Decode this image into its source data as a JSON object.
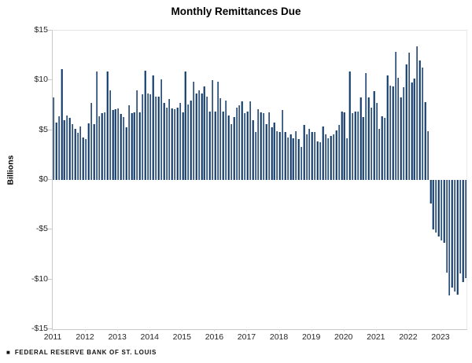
{
  "title": "Monthly Remittances Due",
  "y_axis": {
    "label": "Billions",
    "ticks": [
      "$15",
      "$10",
      "$5",
      "$0",
      "-$5",
      "-$10",
      "-$15"
    ],
    "tick_values": [
      15,
      10,
      5,
      0,
      -5,
      -10,
      -15
    ]
  },
  "x_axis": {
    "year_labels": [
      "2011",
      "2012",
      "2013",
      "2014",
      "2015",
      "2016",
      "2017",
      "2018",
      "2019",
      "2020",
      "2021",
      "2022",
      "2023"
    ]
  },
  "footer": {
    "marker": "■",
    "text": "FEDERAL RESERVE BANK OF ST. LOUIS"
  },
  "colors": {
    "bar_dark": "#152f52",
    "bar_edge_light": "#a9c0d8",
    "bar_edge_mid": "#46709f",
    "axis_line": "#c9c9c9",
    "text": "#262626",
    "background": "#ffffff"
  },
  "chart_data": {
    "type": "bar",
    "title": "Monthly Remittances Due",
    "xlabel": "",
    "ylabel": "Billions",
    "ylim": [
      -15,
      15
    ],
    "grid": false,
    "legend_position": "none",
    "frequency": "monthly",
    "start": "2011-01",
    "end": "2023-10",
    "x_year_ticks": [
      2011,
      2012,
      2013,
      2014,
      2015,
      2016,
      2017,
      2018,
      2019,
      2020,
      2021,
      2022,
      2023
    ],
    "values": [
      8.3,
      5.8,
      6.4,
      11.1,
      6.0,
      6.5,
      6.2,
      5.6,
      5.1,
      4.7,
      5.4,
      4.3,
      4.1,
      5.7,
      7.7,
      5.6,
      10.9,
      6.4,
      6.7,
      6.8,
      10.9,
      9.0,
      7.0,
      7.1,
      7.2,
      6.6,
      6.3,
      5.3,
      7.5,
      6.7,
      6.8,
      9.0,
      6.8,
      8.6,
      11.0,
      8.7,
      8.6,
      10.5,
      8.4,
      8.4,
      10.1,
      7.7,
      7.3,
      8.1,
      7.2,
      7.1,
      7.3,
      7.7,
      6.8,
      10.9,
      7.6,
      8.0,
      9.9,
      8.7,
      9.0,
      8.7,
      9.4,
      8.4,
      6.9,
      10.0,
      6.9,
      9.9,
      8.2,
      6.9,
      8.0,
      6.5,
      5.6,
      6.3,
      7.3,
      7.5,
      7.9,
      6.7,
      6.9,
      7.9,
      6.0,
      4.8,
      7.1,
      6.8,
      6.7,
      5.6,
      6.8,
      5.3,
      5.8,
      4.9,
      4.8,
      7.0,
      4.8,
      4.3,
      4.6,
      4.2,
      4.9,
      4.1,
      3.3,
      5.5,
      4.6,
      5.1,
      4.8,
      4.8,
      3.9,
      3.8,
      5.4,
      4.6,
      4.2,
      4.4,
      4.6,
      5.0,
      5.5,
      6.9,
      6.8,
      4.2,
      10.9,
      6.7,
      6.9,
      6.9,
      8.3,
      6.3,
      10.7,
      8.3,
      7.3,
      8.9,
      7.7,
      5.1,
      6.4,
      6.2,
      10.5,
      9.5,
      9.4,
      12.9,
      10.3,
      8.3,
      9.3,
      11.6,
      12.8,
      9.8,
      10.2,
      13.4,
      12.0,
      11.3,
      7.8,
      4.9,
      -2.4,
      -5.0,
      -5.3,
      -5.7,
      -6.1,
      -6.3,
      -9.3,
      -11.6,
      -10.8,
      -11.2,
      -11.5,
      -9.4,
      -10.3,
      -9.9
    ]
  }
}
